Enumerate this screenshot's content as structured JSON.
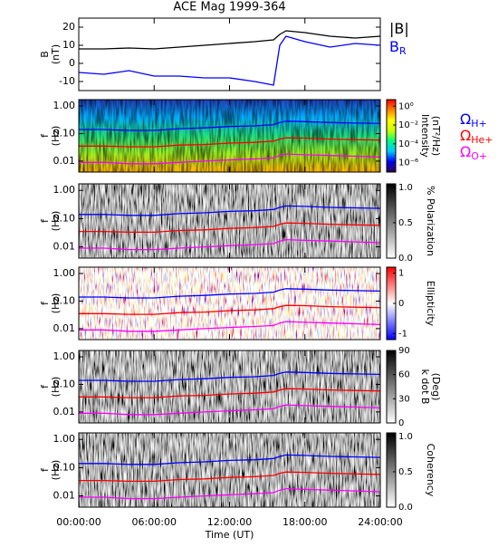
{
  "chart_data": [
    {
      "type": "line",
      "title": "ACE Mag 1999-364",
      "ylabel": "B",
      "yunit": "(nT)",
      "ylim": [
        -15,
        25
      ],
      "yticks": [
        -10,
        0,
        10,
        20
      ],
      "x": [
        0,
        2,
        4,
        6,
        8,
        10,
        12,
        14,
        15.5,
        16,
        16.5,
        18,
        20,
        22,
        24
      ],
      "series": [
        {
          "name": "|B|",
          "color": "#000000",
          "values": [
            8,
            8,
            8.5,
            8,
            9,
            10,
            11,
            12,
            13,
            16,
            18,
            17,
            15,
            14,
            15
          ]
        },
        {
          "name": "B",
          "sub": "R",
          "color": "#0000ff",
          "values": [
            -5,
            -6,
            -4,
            -7,
            -7,
            -8,
            -8,
            -10,
            -12,
            10,
            15,
            12,
            9,
            11,
            10
          ]
        }
      ]
    },
    {
      "type": "spectrogram",
      "ylabel": "f",
      "yunit": "(Hz)",
      "log_y": true,
      "ylim": [
        0.004,
        1.7
      ],
      "yticks": [
        {
          "value": 1,
          "label": "1.00"
        },
        {
          "value": 0.1,
          "label": "0.10"
        },
        {
          "value": 0.01,
          "label": "0.01"
        }
      ],
      "colorbar_label": "Intensity",
      "colorbar_unit": "(nT²/Hz)",
      "colorbar_log": true,
      "zlim": [
        1e-07,
        5
      ],
      "zticks": [
        {
          "value": 1,
          "label": "10⁰"
        },
        {
          "value": 0.01,
          "label": "10⁻²"
        },
        {
          "value": 0.0001,
          "label": "10⁻⁴"
        },
        {
          "value": 1e-06,
          "label": "10⁻⁶"
        }
      ],
      "colormap": [
        "#30004a",
        "#0000ff",
        "#00c8ff",
        "#00ff80",
        "#c8ff00",
        "#ffff00",
        "#ff8000",
        "#ff0000"
      ],
      "x": [
        0,
        2,
        4,
        6,
        8,
        10,
        12,
        14,
        15.5,
        16,
        16.5,
        18,
        20,
        22,
        24
      ],
      "series": [
        {
          "name": "Ω",
          "sub": "H+",
          "color": "#0000ff",
          "values": [
            0.14,
            0.14,
            0.13,
            0.13,
            0.15,
            0.16,
            0.18,
            0.19,
            0.21,
            0.25,
            0.28,
            0.27,
            0.25,
            0.24,
            0.23
          ]
        },
        {
          "name": "Ω",
          "sub": "He+",
          "color": "#ff0000",
          "values": [
            0.035,
            0.035,
            0.033,
            0.033,
            0.038,
            0.04,
            0.045,
            0.048,
            0.053,
            0.063,
            0.07,
            0.068,
            0.063,
            0.06,
            0.058
          ]
        },
        {
          "name": "Ω",
          "sub": "O+",
          "color": "#ff00ff",
          "values": [
            0.009,
            0.009,
            0.008,
            0.008,
            0.009,
            0.01,
            0.011,
            0.012,
            0.013,
            0.016,
            0.018,
            0.017,
            0.016,
            0.015,
            0.014
          ]
        }
      ]
    },
    {
      "type": "spectrogram",
      "ylabel": "f",
      "yunit": "(Hz)",
      "log_y": true,
      "ylim": [
        0.004,
        1.7
      ],
      "yticks": [
        {
          "value": 1,
          "label": "1.00"
        },
        {
          "value": 0.1,
          "label": "0.10"
        },
        {
          "value": 0.01,
          "label": "0.01"
        }
      ],
      "colorbar_label": "% Polarization",
      "zlim": [
        0,
        1.05
      ],
      "zticks": [
        {
          "value": 0,
          "label": "0.0"
        },
        {
          "value": 0.5,
          "label": "0.5"
        },
        {
          "value": 1,
          "label": "1.0"
        }
      ],
      "colormap": [
        "#ffffff",
        "#000000"
      ],
      "x": [
        0,
        2,
        4,
        6,
        8,
        10,
        12,
        14,
        15.5,
        16,
        16.5,
        18,
        20,
        22,
        24
      ],
      "series": [
        {
          "color": "#0000ff",
          "values": [
            0.14,
            0.14,
            0.13,
            0.13,
            0.15,
            0.16,
            0.18,
            0.19,
            0.21,
            0.25,
            0.28,
            0.27,
            0.25,
            0.24,
            0.23
          ]
        },
        {
          "color": "#ff0000",
          "values": [
            0.035,
            0.035,
            0.033,
            0.033,
            0.038,
            0.04,
            0.045,
            0.048,
            0.053,
            0.063,
            0.07,
            0.068,
            0.063,
            0.06,
            0.058
          ]
        },
        {
          "color": "#ff00ff",
          "values": [
            0.009,
            0.009,
            0.008,
            0.008,
            0.009,
            0.01,
            0.011,
            0.012,
            0.013,
            0.016,
            0.018,
            0.017,
            0.016,
            0.015,
            0.014
          ]
        }
      ]
    },
    {
      "type": "spectrogram",
      "ylabel": "f",
      "yunit": "(Hz)",
      "log_y": true,
      "ylim": [
        0.004,
        1.7
      ],
      "yticks": [
        {
          "value": 1,
          "label": "1.00"
        },
        {
          "value": 0.1,
          "label": "0.10"
        },
        {
          "value": 0.01,
          "label": "0.01"
        }
      ],
      "colorbar_label": "Ellipticity",
      "zlim": [
        -1.2,
        1.2
      ],
      "zticks": [
        -1,
        0,
        1
      ],
      "colormap": [
        "#0000ff",
        "#ffffff",
        "#ff0000"
      ],
      "x": [
        0,
        2,
        4,
        6,
        8,
        10,
        12,
        14,
        15.5,
        16,
        16.5,
        18,
        20,
        22,
        24
      ],
      "series": [
        {
          "color": "#0000ff",
          "values": [
            0.14,
            0.14,
            0.13,
            0.13,
            0.15,
            0.16,
            0.18,
            0.19,
            0.21,
            0.25,
            0.28,
            0.27,
            0.25,
            0.24,
            0.23
          ]
        },
        {
          "color": "#ff0000",
          "values": [
            0.035,
            0.035,
            0.033,
            0.033,
            0.038,
            0.04,
            0.045,
            0.048,
            0.053,
            0.063,
            0.07,
            0.068,
            0.063,
            0.06,
            0.058
          ]
        },
        {
          "color": "#ff00ff",
          "values": [
            0.009,
            0.009,
            0.008,
            0.008,
            0.009,
            0.01,
            0.011,
            0.012,
            0.013,
            0.016,
            0.018,
            0.017,
            0.016,
            0.015,
            0.014
          ]
        }
      ]
    },
    {
      "type": "spectrogram",
      "ylabel": "f",
      "yunit": "(Hz)",
      "log_y": true,
      "ylim": [
        0.004,
        1.7
      ],
      "yticks": [
        {
          "value": 1,
          "label": "1.00"
        },
        {
          "value": 0.1,
          "label": "0.10"
        },
        {
          "value": 0.01,
          "label": "0.01"
        }
      ],
      "colorbar_label": "k dot B",
      "colorbar_unit": "(Deg)",
      "zlim": [
        0,
        90
      ],
      "zticks": [
        0,
        30,
        60,
        90
      ],
      "colormap": [
        "#ffffff",
        "#000000"
      ],
      "x": [
        0,
        2,
        4,
        6,
        8,
        10,
        12,
        14,
        15.5,
        16,
        16.5,
        18,
        20,
        22,
        24
      ],
      "series": [
        {
          "color": "#0000ff",
          "values": [
            0.14,
            0.14,
            0.13,
            0.13,
            0.15,
            0.16,
            0.18,
            0.19,
            0.21,
            0.25,
            0.28,
            0.27,
            0.25,
            0.24,
            0.23
          ]
        },
        {
          "color": "#ff0000",
          "values": [
            0.035,
            0.035,
            0.033,
            0.033,
            0.038,
            0.04,
            0.045,
            0.048,
            0.053,
            0.063,
            0.07,
            0.068,
            0.063,
            0.06,
            0.058
          ]
        },
        {
          "color": "#ff00ff",
          "values": [
            0.009,
            0.009,
            0.008,
            0.008,
            0.009,
            0.01,
            0.011,
            0.012,
            0.013,
            0.016,
            0.018,
            0.017,
            0.016,
            0.015,
            0.014
          ]
        }
      ]
    },
    {
      "type": "spectrogram",
      "ylabel": "f",
      "yunit": "(Hz)",
      "log_y": true,
      "ylim": [
        0.004,
        1.7
      ],
      "yticks": [
        {
          "value": 1,
          "label": "1.00"
        },
        {
          "value": 0.1,
          "label": "0.10"
        },
        {
          "value": 0.01,
          "label": "0.01"
        }
      ],
      "colorbar_label": "Coherency",
      "zlim": [
        0,
        1.05
      ],
      "zticks": [
        {
          "value": 0,
          "label": "0.0"
        },
        {
          "value": 0.5,
          "label": "0.5"
        },
        {
          "value": 1,
          "label": "1.0"
        }
      ],
      "colormap": [
        "#ffffff",
        "#000000"
      ],
      "x": [
        0,
        2,
        4,
        6,
        8,
        10,
        12,
        14,
        15.5,
        16,
        16.5,
        18,
        20,
        22,
        24
      ],
      "series": [
        {
          "color": "#0000ff",
          "values": [
            0.14,
            0.14,
            0.13,
            0.13,
            0.15,
            0.16,
            0.18,
            0.19,
            0.21,
            0.25,
            0.28,
            0.27,
            0.25,
            0.24,
            0.23
          ]
        },
        {
          "color": "#ff0000",
          "values": [
            0.035,
            0.035,
            0.033,
            0.033,
            0.038,
            0.04,
            0.045,
            0.048,
            0.053,
            0.063,
            0.07,
            0.068,
            0.063,
            0.06,
            0.058
          ]
        },
        {
          "color": "#ff00ff",
          "values": [
            0.009,
            0.009,
            0.008,
            0.008,
            0.009,
            0.01,
            0.011,
            0.012,
            0.013,
            0.016,
            0.018,
            0.017,
            0.016,
            0.015,
            0.014
          ]
        }
      ],
      "xlabel": "Time (UT)",
      "xlim": [
        0,
        24
      ],
      "xticks": [
        {
          "value": 0,
          "label": "00:00:00"
        },
        {
          "value": 6,
          "label": "06:00:00"
        },
        {
          "value": 12,
          "label": "12:00:00"
        },
        {
          "value": 18,
          "label": "18:00:00"
        },
        {
          "value": 24,
          "label": "24:00:00"
        }
      ]
    }
  ]
}
